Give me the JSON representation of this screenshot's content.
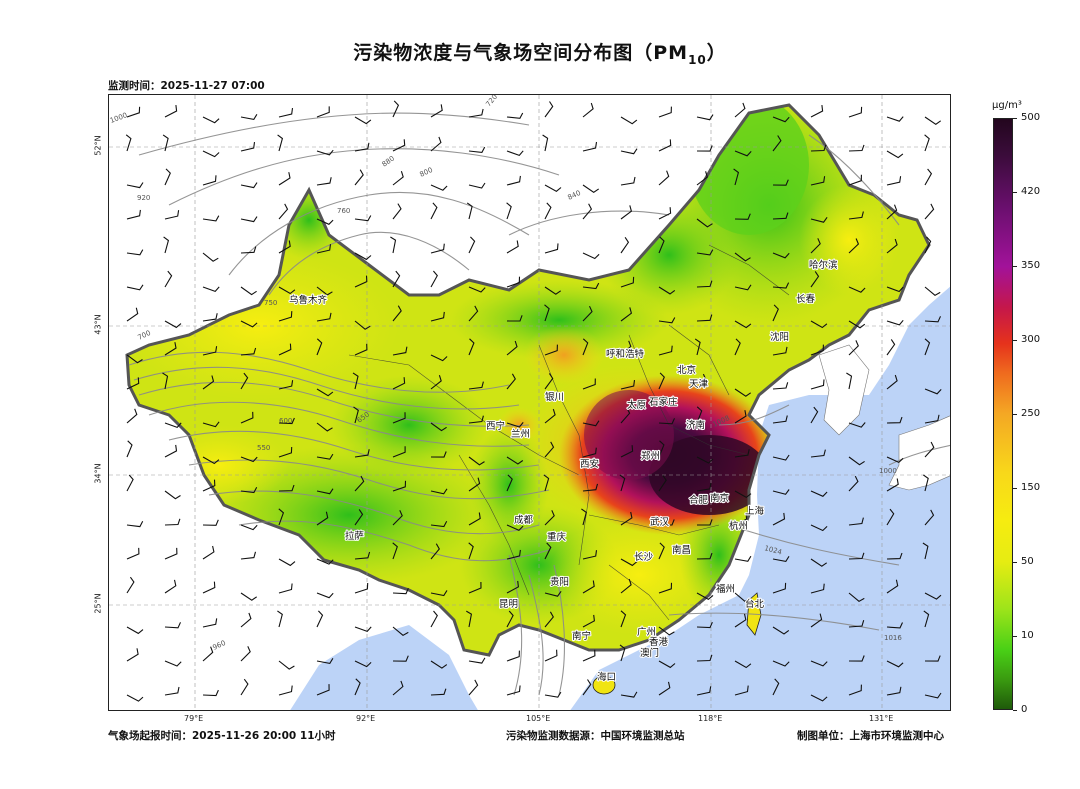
{
  "title": "污染物浓度与气象场空间分布图（PM",
  "title_sub": "10",
  "title_end": "）",
  "monitor_time": "监测时间：2025-11-27 07:00",
  "forecast_time": "气象场起报时间：2025-11-26 20:00 11小时",
  "data_source": "污染物监测数据源：中国环境监测总站",
  "producer": "制图单位：上海市环境监测中心",
  "lon_ticks": [
    "79°E",
    "92°E",
    "105°E",
    "118°E",
    "131°E"
  ],
  "lat_ticks": [
    "52°N",
    "43°N",
    "34°N",
    "25°N"
  ],
  "colorbar": {
    "unit": "μg/m³",
    "ticks": [
      "0",
      "10",
      "50",
      "150",
      "250",
      "300",
      "350",
      "420",
      "500"
    ]
  },
  "cities": [
    "乌鲁木齐",
    "拉萨",
    "西宁",
    "兰州",
    "银川",
    "呼和浩特",
    "北京",
    "天津",
    "石家庄",
    "太原",
    "济南",
    "郑州",
    "西安",
    "成都",
    "重庆",
    "贵阳",
    "昆明",
    "南宁",
    "广州",
    "香港",
    "澳门",
    "海口",
    "长沙",
    "武汉",
    "南昌",
    "合肥",
    "南京",
    "上海",
    "杭州",
    "福州",
    "台北",
    "沈阳",
    "长春",
    "哈尔滨"
  ],
  "isobar_labels": [
    "1000",
    "920",
    "880",
    "840",
    "800",
    "760",
    "720",
    "750",
    "700",
    "650",
    "600",
    "550",
    "960",
    "1016",
    "1024",
    "1008",
    "1000"
  ],
  "colors": {
    "ocean": "#bcd3f7",
    "low": "#3cc91e",
    "mid": "#f2ec13",
    "high": "#f08a1c",
    "very_high": "#b2115b",
    "extreme": "#2f0726"
  }
}
